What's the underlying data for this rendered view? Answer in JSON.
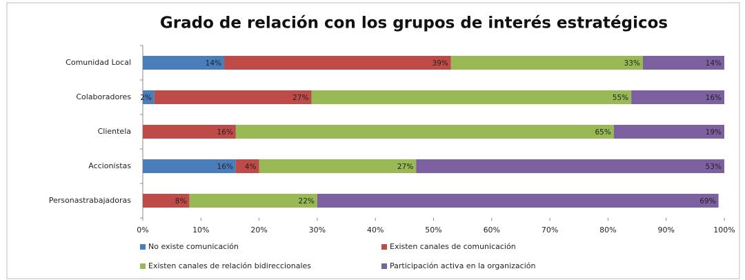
{
  "chart_data": {
    "type": "stacked_bar_horizontal",
    "title": "Grado de relación con los grupos de interés estratégicos",
    "categories": [
      "Comunidad Local",
      "Colaboradores",
      "Clientela",
      "Accionistas",
      "Personastrabajadoras"
    ],
    "series": [
      {
        "name": "No existe comunicación",
        "color": "#4a7ebb",
        "values": [
          14,
          2,
          null,
          16,
          null
        ],
        "value_labels": [
          "14%",
          "2%",
          null,
          "16%",
          null
        ]
      },
      {
        "name": "Existen canales de comunicación",
        "color": "#be4b48",
        "values": [
          39,
          27,
          16,
          4,
          8
        ],
        "value_labels": [
          "39%",
          "27%",
          "16%",
          "4%",
          "8%"
        ]
      },
      {
        "name": "Existen canales de relación bidireccionales",
        "color": "#98b954",
        "values": [
          33,
          55,
          65,
          27,
          22
        ],
        "value_labels": [
          "33%",
          "55%",
          "65%",
          "27%",
          "22%"
        ]
      },
      {
        "name": "Participación activa en la organización",
        "color": "#7d60a0",
        "values": [
          14,
          16,
          19,
          53,
          69
        ],
        "value_labels": [
          "14%",
          "16%",
          "19%",
          "53%",
          "69%"
        ]
      }
    ],
    "xlim": [
      0,
      100
    ],
    "xticks": [
      {
        "value": 0,
        "label": "0%"
      },
      {
        "value": 10,
        "label": "10%"
      },
      {
        "value": 20,
        "label": "20%"
      },
      {
        "value": 30,
        "label": "30%"
      },
      {
        "value": 40,
        "label": "40%"
      },
      {
        "value": 50,
        "label": "50%"
      },
      {
        "value": 60,
        "label": "60%"
      },
      {
        "value": 70,
        "label": "70%"
      },
      {
        "value": 80,
        "label": "80%"
      },
      {
        "value": 90,
        "label": "90%"
      },
      {
        "value": 100,
        "label": "100%"
      }
    ],
    "legend": "bottom"
  }
}
